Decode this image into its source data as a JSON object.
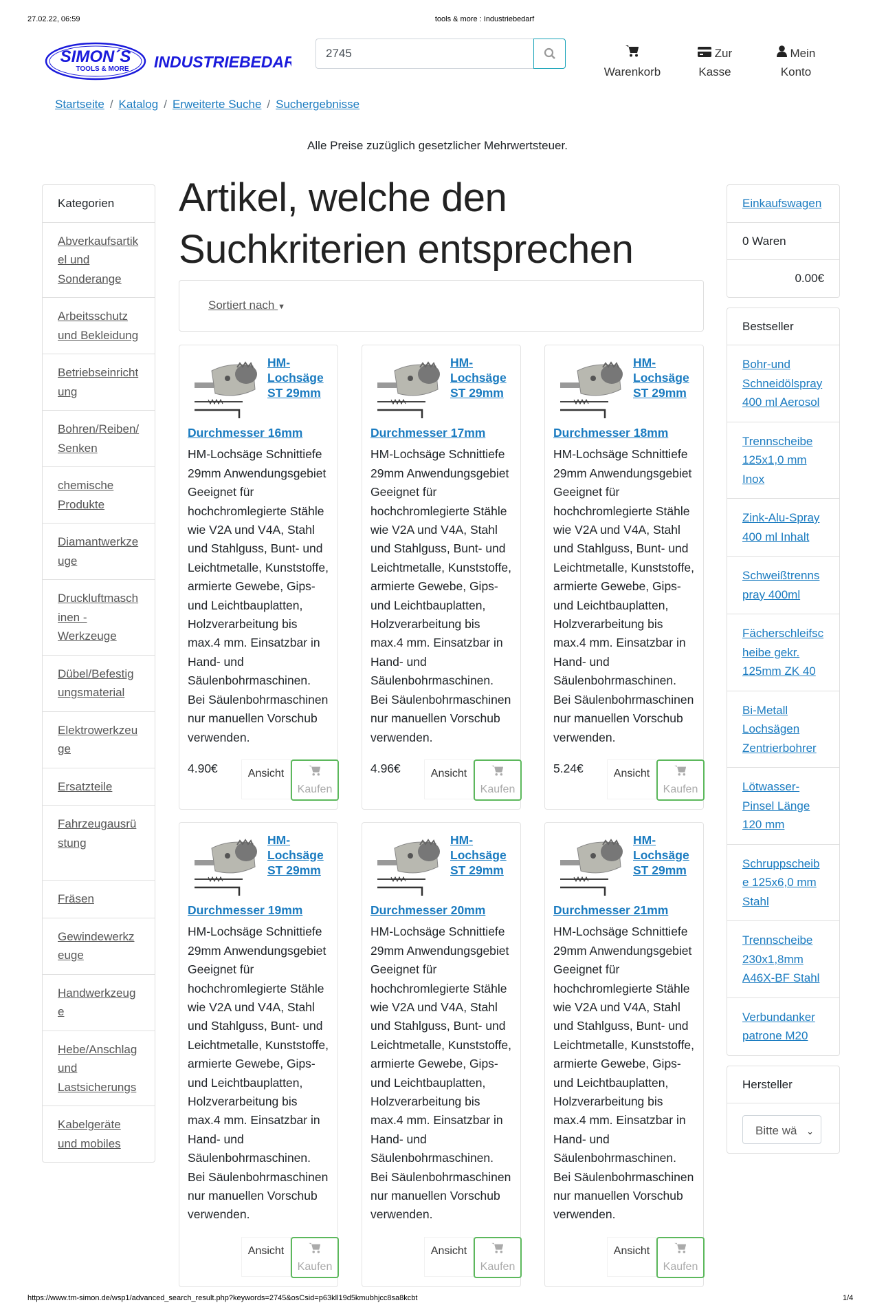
{
  "print_header": {
    "datetime": "27.02.22, 06:59",
    "title": "tools & more : Industriebedarf"
  },
  "print_footer": {
    "url": "https://www.tm-simon.de/wsp1/advanced_search_result.php?keywords=2745&osCsid=p63kll19d5kmubhjcc8sa8kcbt",
    "page": "1/4"
  },
  "logo": {
    "name": "SIMON´S",
    "tagline": "TOOLS & MORE",
    "word": "INDUSTRIEBEDARF"
  },
  "search": {
    "value": "2745",
    "icon": "search-icon"
  },
  "nav": {
    "cart": {
      "label": "Warenkorb",
      "icon": "cart-icon"
    },
    "checkout": {
      "label1": "Zur",
      "label2": "Kasse",
      "icon": "credit-card-icon"
    },
    "account": {
      "label1": "Mein",
      "label2": "Konto",
      "icon": "user-icon"
    }
  },
  "breadcrumb": [
    "Startseite",
    "Katalog",
    "Erweiterte Suche",
    "Suchergebnisse"
  ],
  "notice": "Alle Preise zuzüglich gesetzlicher Mehrwertsteuer.",
  "categories": {
    "title": "Kategorien",
    "items": [
      "Abverkaufsartikel und Sonderange",
      "Arbeitsschutz und Bekleidung",
      "Betriebseinrichtung",
      "Bohren/Reiben/Senken",
      "chemische Produkte",
      "Diamantwerkzeuge",
      "Druckluftmaschinen - Werkzeuge",
      "Dübel/Befestigungsmaterial",
      "Elektrowerkzeuge",
      "Ersatzteile",
      "Fahrzeugausrüstung",
      "Fräsen",
      "Gewindewerkzeuge",
      "Handwerkzeuge",
      "Hebe/Anschlag und Lastsicherungs",
      "Kabelgeräte und mobiles"
    ]
  },
  "main": {
    "title": "Artikel, welche den Suchkriterien entsprechen",
    "sort_label": "Sortiert nach",
    "view_label": "Ansicht",
    "buy_label": "Kaufen",
    "products": [
      {
        "name": "HM-Lochsäge ST 29mm",
        "variant": "Durchmesser 16mm",
        "price": "4.90€"
      },
      {
        "name": "HM-Lochsäge ST 29mm",
        "variant": "Durchmesser 17mm",
        "price": "4.96€"
      },
      {
        "name": "HM-Lochsäge ST 29mm",
        "variant": "Durchmesser 18mm",
        "price": "5.24€"
      },
      {
        "name": "HM-Lochsäge ST 29mm",
        "variant": "Durchmesser 19mm",
        "price": ""
      },
      {
        "name": "HM-Lochsäge ST 29mm",
        "variant": "Durchmesser 20mm",
        "price": ""
      },
      {
        "name": "HM-Lochsäge ST 29mm",
        "variant": "Durchmesser 21mm",
        "price": ""
      }
    ],
    "description": "HM-Lochsäge Schnittiefe 29mm Anwendungsgebiet Geeignet für hochchromlegierte Stähle wie V2A und V4A, Stahl und Stahlguss, Bunt- und Leichtmetalle, Kunststoffe, armierte Gewebe, Gips- und Leichtbauplatten, Holzverarbeitung bis max.4 mm. Einsatzbar in Hand- und Säulenbohrmaschinen. Bei Säulenbohrmaschinen nur manuellen Vorschub verwenden."
  },
  "cart_box": {
    "title": "Einkaufswagen",
    "count": "0 Waren",
    "total": "0.00€"
  },
  "bestseller": {
    "title": "Bestseller",
    "items": [
      "Bohr-und Schneidölspray 400 ml Aerosol",
      "Trennscheibe 125x1,0 mm Inox",
      "Zink-Alu-Spray 400 ml Inhalt",
      "Schweißtrennspray 400ml",
      "Fächerschleifscheibe gekr. 125mm ZK 40",
      "Bi-Metall Lochsägen Zentrierbohrer",
      "Lötwasser-Pinsel Länge 120 mm",
      "Schruppscheibe 125x6,0 mm Stahl",
      "Trennscheibe 230x1,8mm A46X-BF Stahl",
      "Verbundanker patrone M20"
    ]
  },
  "manufacturer": {
    "title": "Hersteller",
    "select_value": "Bitte wä"
  },
  "colors": {
    "link": "#1a7bc0",
    "buy_border": "#5cb85c",
    "logo_blue": "#1a1adb"
  }
}
